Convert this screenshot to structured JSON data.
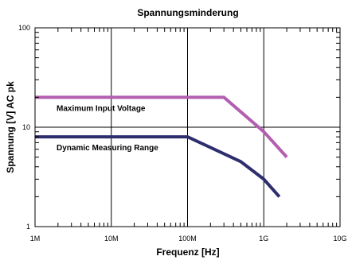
{
  "chart_data": {
    "type": "line",
    "title": "Spannungsminderung",
    "xlabel": "Frequenz [Hz]",
    "ylabel": "Spannung [V] AC pk",
    "x_scale": "log",
    "y_scale": "log",
    "xlim": [
      1000000,
      10000000000
    ],
    "ylim": [
      1,
      100
    ],
    "grid": true,
    "x_ticks": [
      {
        "value": 1000000,
        "label": "1M"
      },
      {
        "value": 10000000,
        "label": "10M"
      },
      {
        "value": 100000000,
        "label": "100M"
      },
      {
        "value": 1000000000,
        "label": "1G"
      },
      {
        "value": 10000000000,
        "label": "10G"
      }
    ],
    "y_ticks": [
      {
        "value": 1,
        "label": "1"
      },
      {
        "value": 10,
        "label": "10"
      },
      {
        "value": 100,
        "label": "100"
      }
    ],
    "series": [
      {
        "name": "Maximum Input Voltage",
        "color": "#b35fb0",
        "points": [
          [
            1000000,
            20
          ],
          [
            300000000,
            20
          ],
          [
            1000000000,
            9
          ],
          [
            2000000000,
            5
          ]
        ]
      },
      {
        "name": "Dynamic Measuring Range",
        "color": "#2e2e6e",
        "points": [
          [
            1000000,
            8
          ],
          [
            100000000,
            8
          ],
          [
            500000000,
            4.5
          ],
          [
            1000000000,
            3
          ],
          [
            1600000000,
            2
          ]
        ]
      }
    ]
  }
}
